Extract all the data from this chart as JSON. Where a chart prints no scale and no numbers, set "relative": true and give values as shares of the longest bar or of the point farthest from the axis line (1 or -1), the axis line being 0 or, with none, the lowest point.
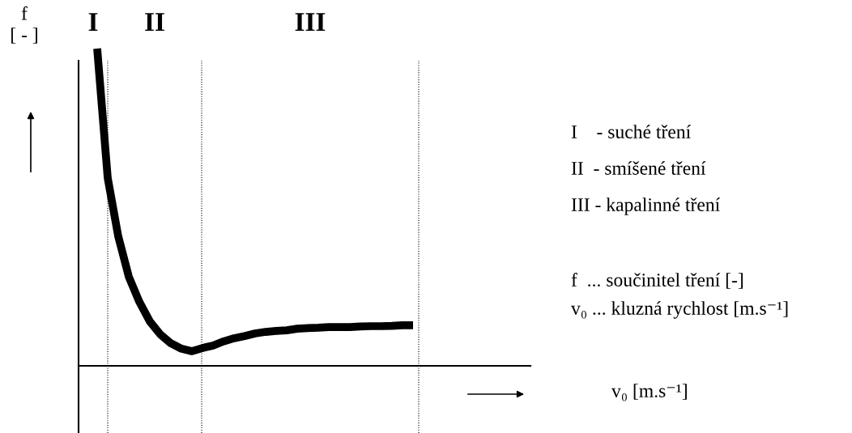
{
  "chart_data": {
    "type": "line",
    "relative": true,
    "ylabel": "f\n[ - ]",
    "color": "#000000",
    "line_style": "solid",
    "marker": "none",
    "categories": [
      null,
      null,
      null,
      null,
      null,
      null,
      null,
      null,
      null,
      null,
      null,
      null,
      null,
      null,
      null,
      null,
      null,
      null,
      null,
      null,
      null,
      null,
      null,
      null,
      null,
      null,
      null,
      null,
      null,
      null,
      null
    ],
    "values": [
      1.0,
      0.592,
      0.408,
      0.281,
      0.202,
      0.14,
      0.099,
      0.071,
      0.054,
      0.046,
      0.056,
      0.064,
      0.077,
      0.087,
      0.094,
      0.102,
      0.107,
      0.11,
      0.112,
      0.117,
      0.119,
      0.12,
      0.122,
      0.122,
      0.122,
      0.124,
      0.125,
      0.125,
      0.126,
      0.128,
      0.128
    ],
    "annotations": [
      "I",
      "II",
      "III",
      "I    - suché tření",
      "II  - smíšené tření",
      "III - kapalinné tření",
      "f  ... součinitel tření [-]",
      "v₀ ... kluzná rychlost [m.s⁻¹]",
      "v₀ [m.s⁻¹]"
    ]
  }
}
